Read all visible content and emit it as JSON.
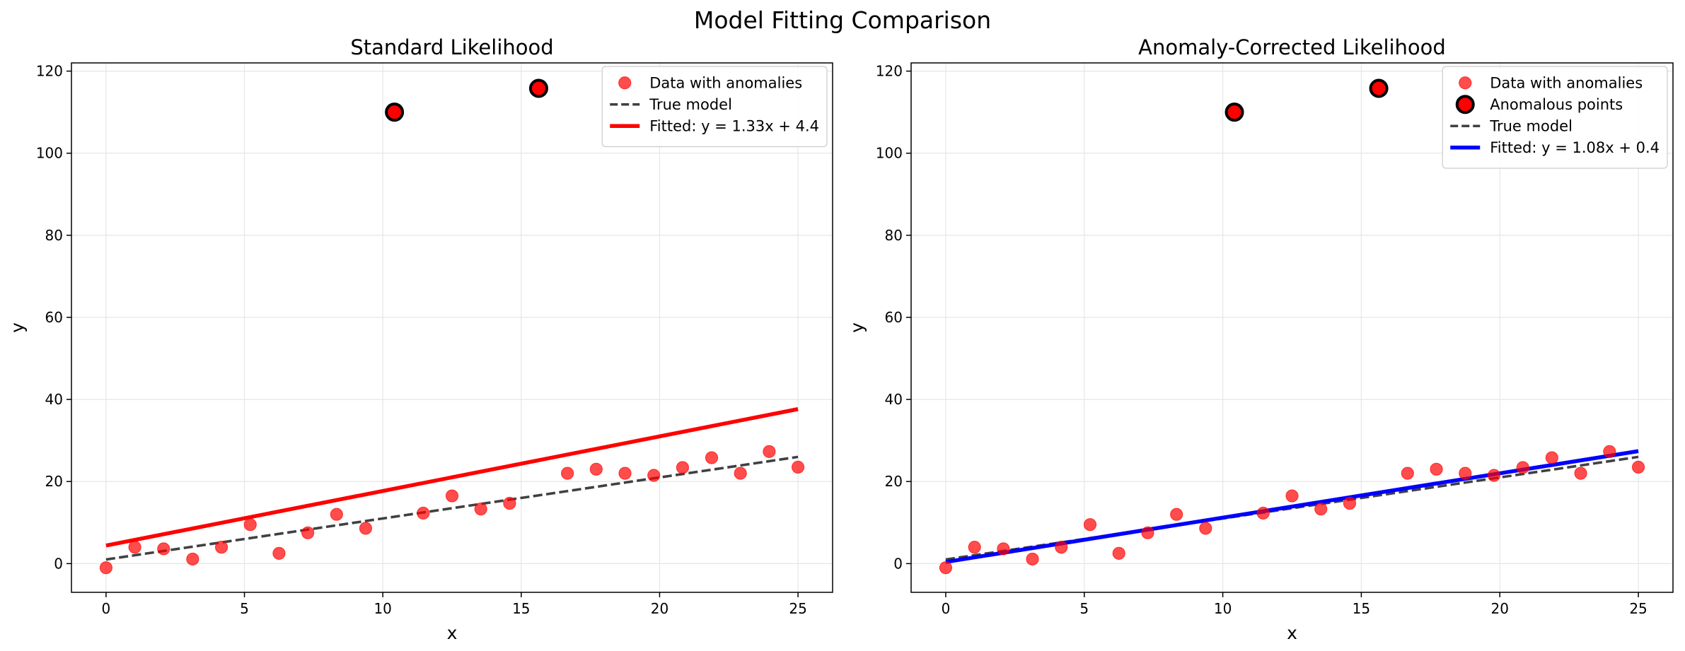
{
  "figure": {
    "title": "Model Fitting Comparison"
  },
  "chart_data": [
    {
      "type": "scatter",
      "title": "Standard Likelihood",
      "xlabel": "x",
      "ylabel": "y",
      "xlim": [
        -1.25,
        26.25
      ],
      "ylim": [
        -7,
        122
      ],
      "xticks": [
        0,
        5,
        10,
        15,
        20,
        25
      ],
      "yticks": [
        0,
        20,
        40,
        60,
        80,
        100,
        120
      ],
      "grid": true,
      "legend_position": "top-right",
      "data_points": {
        "name": "Data with anomalies",
        "color": "#ff0000",
        "x": [
          0,
          1.04,
          2.08,
          3.13,
          4.17,
          5.21,
          6.25,
          7.29,
          8.33,
          9.38,
          11.46,
          12.5,
          13.54,
          14.58,
          16.67,
          17.71,
          18.75,
          19.79,
          20.83,
          21.88,
          22.92,
          23.96,
          25
        ],
        "y": [
          -1,
          4,
          3.6,
          1.1,
          4,
          9.5,
          2.5,
          7.5,
          12,
          8.6,
          12.3,
          16.5,
          13.3,
          14.7,
          22,
          23,
          22,
          21.5,
          23.4,
          25.8,
          22,
          27.3,
          23.5
        ]
      },
      "anomalies": {
        "name": "Anomalous points",
        "show_in_legend": false,
        "x": [
          10.42,
          15.63
        ],
        "y": [
          110,
          115.8
        ]
      },
      "true_model": {
        "name": "True model",
        "x": [
          0,
          25
        ],
        "y": [
          1,
          26
        ],
        "color": "#404040"
      },
      "fitted": {
        "name": "Fitted: y = 1.33x + 4.4",
        "x": [
          0,
          25
        ],
        "y": [
          4.4,
          37.65
        ],
        "color": "#ff0000"
      }
    },
    {
      "type": "scatter",
      "title": "Anomaly-Corrected Likelihood",
      "xlabel": "x",
      "ylabel": "y",
      "xlim": [
        -1.25,
        26.25
      ],
      "ylim": [
        -7,
        122
      ],
      "xticks": [
        0,
        5,
        10,
        15,
        20,
        25
      ],
      "yticks": [
        0,
        20,
        40,
        60,
        80,
        100,
        120
      ],
      "grid": true,
      "legend_position": "top-right",
      "data_points": {
        "name": "Data with anomalies",
        "color": "#ff0000",
        "x": [
          0,
          1.04,
          2.08,
          3.13,
          4.17,
          5.21,
          6.25,
          7.29,
          8.33,
          9.38,
          11.46,
          12.5,
          13.54,
          14.58,
          16.67,
          17.71,
          18.75,
          19.79,
          20.83,
          21.88,
          22.92,
          23.96,
          25
        ],
        "y": [
          -1,
          4,
          3.6,
          1.1,
          4,
          9.5,
          2.5,
          7.5,
          12,
          8.6,
          12.3,
          16.5,
          13.3,
          14.7,
          22,
          23,
          22,
          21.5,
          23.4,
          25.8,
          22,
          27.3,
          23.5
        ]
      },
      "anomalies": {
        "name": "Anomalous points",
        "show_in_legend": true,
        "x": [
          10.42,
          15.63
        ],
        "y": [
          110,
          115.8
        ]
      },
      "true_model": {
        "name": "True model",
        "x": [
          0,
          25
        ],
        "y": [
          1,
          26
        ],
        "color": "#404040"
      },
      "fitted": {
        "name": "Fitted: y = 1.08x + 0.4",
        "x": [
          0,
          25
        ],
        "y": [
          0.4,
          27.4
        ],
        "color": "#0000ff"
      }
    }
  ]
}
